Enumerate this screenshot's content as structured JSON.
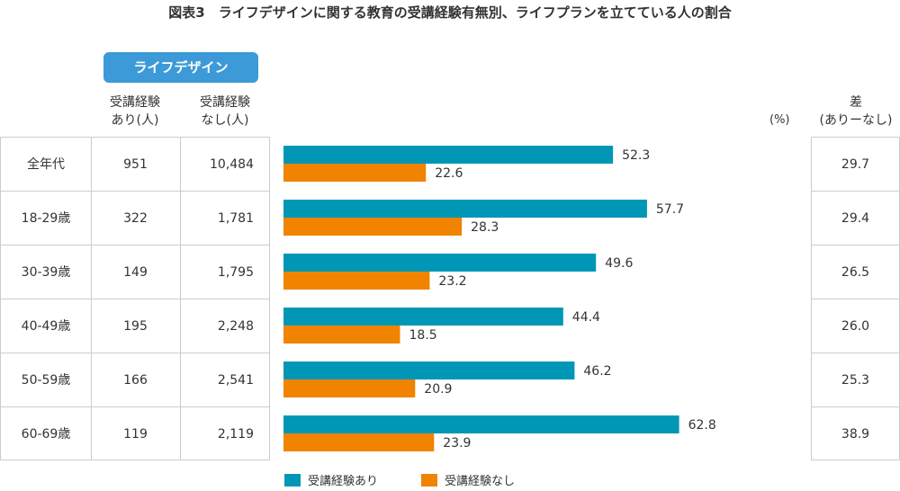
{
  "title": "図表3　ライフデザインに関する教育の受講経験有無別、ライフプランを立てている人の割合",
  "group_label": "ライフデザイン",
  "col_with": [
    "受講経験",
    "あり(人)"
  ],
  "col_without": [
    "受講経験",
    "なし(人)"
  ],
  "unit": "(%)",
  "diff_header": [
    "差",
    "(ありーなし)"
  ],
  "colors": {
    "with": "#0097b7",
    "without": "#f08300"
  },
  "chart_data": {
    "type": "bar",
    "orientation": "horizontal",
    "categories": [
      "全年代",
      "18-29歳",
      "30-39歳",
      "40-49歳",
      "50-59歳",
      "60-69歳"
    ],
    "n_with": [
      "951",
      "322",
      "149",
      "195",
      "166",
      "119"
    ],
    "n_without": [
      "10,484",
      "1,781",
      "1,795",
      "2,248",
      "2,541",
      "2,119"
    ],
    "series": [
      {
        "name": "受講経験あり",
        "values": [
          52.3,
          57.7,
          49.6,
          44.4,
          46.2,
          62.8
        ]
      },
      {
        "name": "受講経験なし",
        "values": [
          22.6,
          28.3,
          23.2,
          18.5,
          20.9,
          23.9
        ]
      }
    ],
    "diff": [
      "29.7",
      "29.4",
      "26.5",
      "26.0",
      "25.3",
      "38.9"
    ],
    "legend": "bottom"
  }
}
